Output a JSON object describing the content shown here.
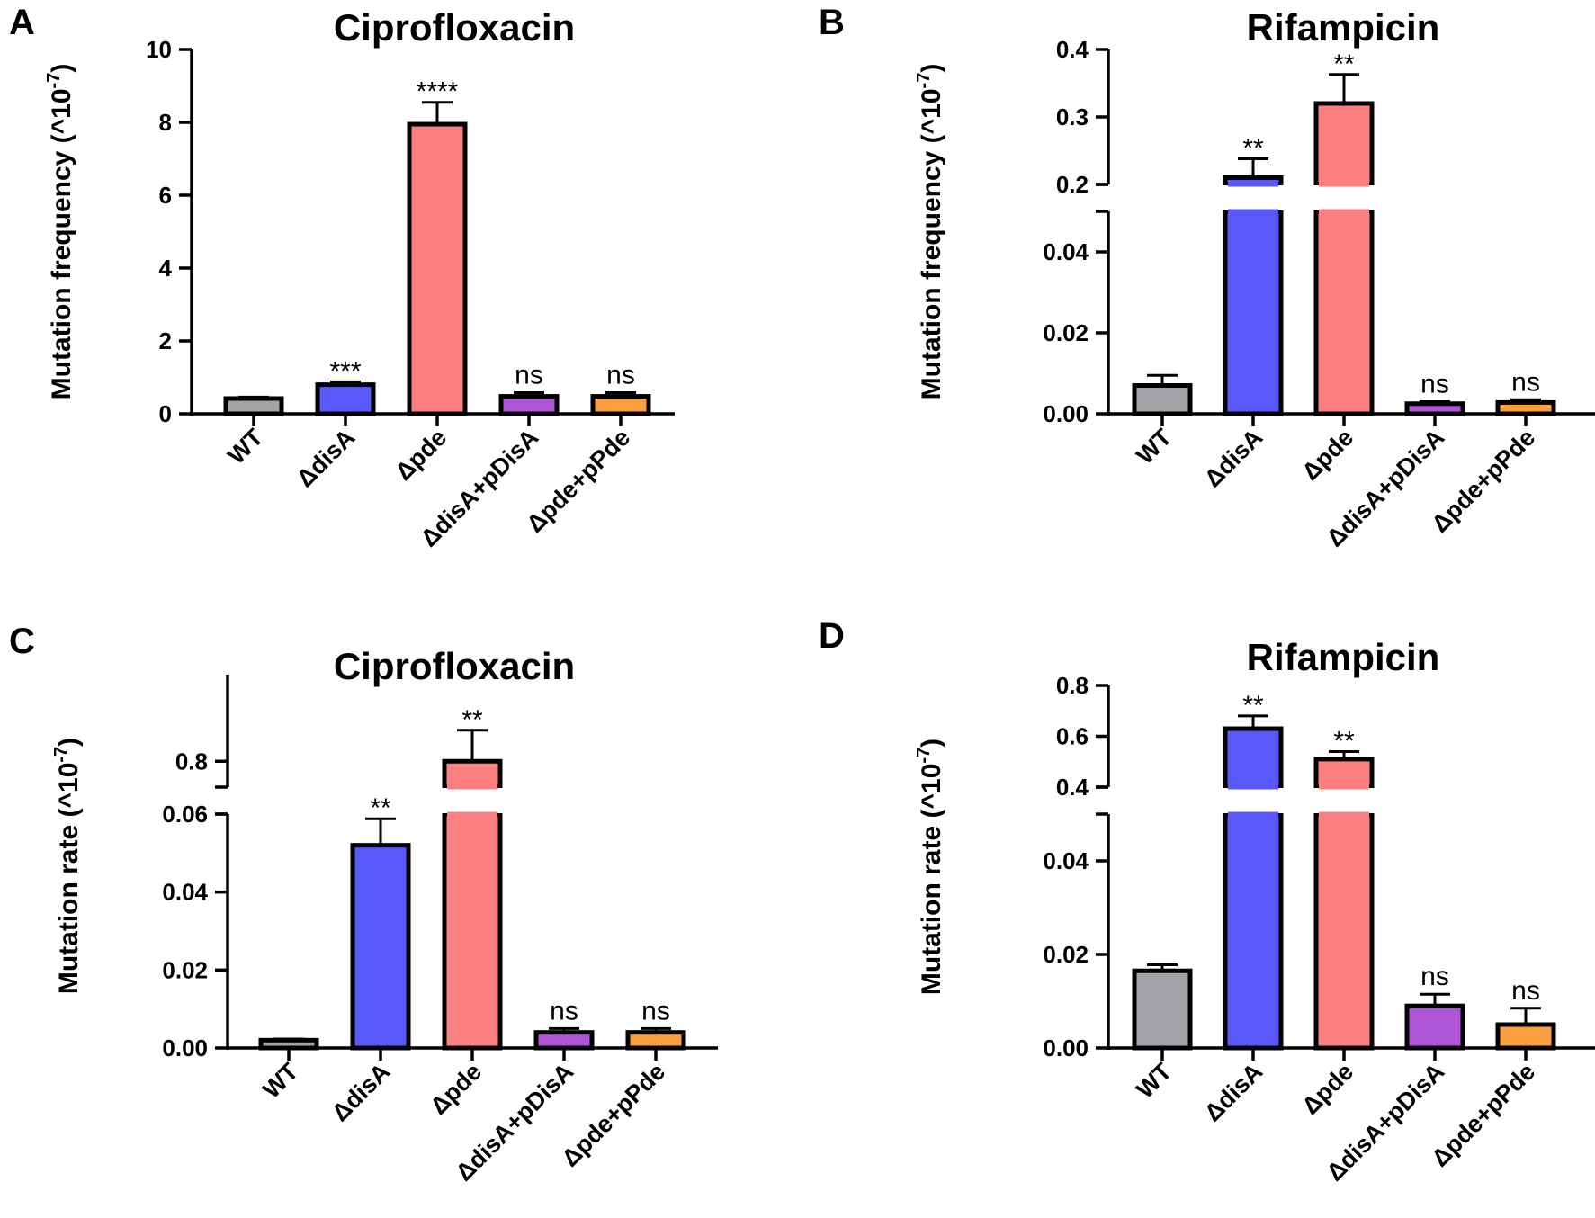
{
  "chart_data": [
    {
      "panel": "A",
      "type": "bar",
      "title": "Ciprofloxacin",
      "ylabel": "Mutation frequency (^10-7)",
      "categories": [
        "WT",
        "ΔdisA",
        "Δpde",
        "ΔdisA+pDisA",
        "Δpde+pPde"
      ],
      "colors": [
        "#a3a3a7",
        "#5858fb",
        "#fd8080",
        "#b155d8",
        "#fa9f3f"
      ],
      "values": [
        0.42,
        0.8,
        7.95,
        0.48,
        0.48
      ],
      "errors": [
        0.04,
        0.08,
        0.6,
        0.1,
        0.1
      ],
      "significance": [
        "",
        "***",
        "****",
        "ns",
        "ns"
      ],
      "ylim": [
        0,
        10
      ],
      "yticks": [
        0,
        2,
        4,
        6,
        8,
        10
      ]
    },
    {
      "panel": "B",
      "type": "bar",
      "title": "Rifampicin",
      "ylabel": "Mutation frequency (^10-7)",
      "categories": [
        "WT",
        "ΔdisA",
        "Δpde",
        "ΔdisA+pDisA",
        "Δpde+pPde"
      ],
      "colors": [
        "#a3a3a7",
        "#5858fb",
        "#fd8080",
        "#b155d8",
        "#fa9f3f"
      ],
      "values": [
        0.007,
        0.21,
        0.32,
        0.0025,
        0.0028
      ],
      "errors": [
        0.0025,
        0.028,
        0.043,
        0.0005,
        0.0007
      ],
      "significance": [
        "",
        "**",
        "**",
        "ns",
        "ns"
      ],
      "axis_break": {
        "lower_range": [
          0,
          0.05
        ],
        "upper_range": [
          0.2,
          0.4
        ]
      },
      "yticks_lower": [
        0.0,
        0.02,
        0.04
      ],
      "yticks_upper": [
        0.2,
        0.3,
        0.4
      ]
    },
    {
      "panel": "C",
      "type": "bar",
      "title": "Ciprofloxacin",
      "ylabel": "Mutation rate (^10-7)",
      "categories": [
        "WT",
        "ΔdisA",
        "Δpde",
        "ΔdisA+pDisA",
        "Δpde+pPde"
      ],
      "colors": [
        "#a3a3a7",
        "#5858fb",
        "#fd8080",
        "#b155d8",
        "#fa9f3f"
      ],
      "values": [
        0.002,
        0.052,
        0.8,
        0.004,
        0.004
      ],
      "errors": [
        0.0003,
        0.0068,
        0.06,
        0.001,
        0.001
      ],
      "significance": [
        "",
        "**",
        "**",
        "ns",
        "ns"
      ],
      "axis_break": {
        "lower_range": [
          0,
          0.06
        ],
        "upper_range": [
          0.75,
          0.95
        ]
      },
      "yticks_lower": [
        0.0,
        0.02,
        0.04,
        0.06
      ],
      "yticks_upper": [
        0.8
      ]
    },
    {
      "panel": "D",
      "type": "bar",
      "title": "Rifampicin",
      "ylabel": "Mutation rate (^10-7)",
      "categories": [
        "WT",
        "ΔdisA",
        "Δpde",
        "ΔdisA+pDisA",
        "Δpde+pPde"
      ],
      "colors": [
        "#a3a3a7",
        "#5858fb",
        "#fd8080",
        "#b155d8",
        "#fa9f3f"
      ],
      "values": [
        0.0165,
        0.63,
        0.51,
        0.009,
        0.005
      ],
      "errors": [
        0.0013,
        0.05,
        0.03,
        0.0025,
        0.0035
      ],
      "significance": [
        "",
        "**",
        "**",
        "ns",
        "ns"
      ],
      "axis_break": {
        "lower_range": [
          0,
          0.05
        ],
        "upper_range": [
          0.4,
          0.8
        ]
      },
      "yticks_lower": [
        0.0,
        0.02,
        0.04
      ],
      "yticks_upper": [
        0.4,
        0.6,
        0.8
      ]
    }
  ]
}
